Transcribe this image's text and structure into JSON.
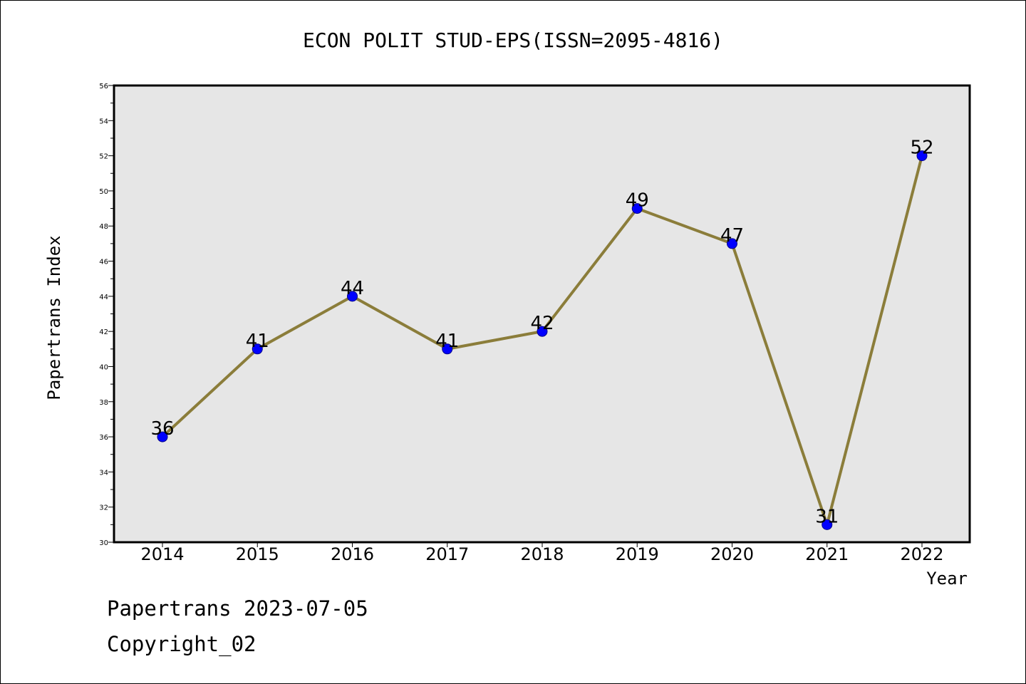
{
  "chart_data": {
    "type": "line",
    "title": "ECON POLIT STUD-EPS(ISSN=2095-4816)",
    "xlabel": "Year",
    "ylabel": "Papertrans Index",
    "categories": [
      "2014",
      "2015",
      "2016",
      "2017",
      "2018",
      "2019",
      "2020",
      "2021",
      "2022"
    ],
    "series": [
      {
        "values": [
          36,
          41,
          44,
          41,
          42,
          49,
          47,
          31,
          52
        ]
      }
    ],
    "data_labels": [
      "36",
      "41",
      "44",
      "41",
      "42",
      "49",
      "47",
      "31",
      "52"
    ],
    "ylim": [
      30,
      56
    ],
    "y_ticks": [
      "30",
      "32",
      "34",
      "36",
      "38",
      "40",
      "42",
      "44",
      "46",
      "48",
      "50",
      "52",
      "54",
      "56"
    ],
    "grid": false,
    "legend": "none",
    "colors": {
      "line": "#8b7d3a",
      "marker": "#0000ff",
      "plot_background": "#e6e6e6",
      "frame": "#000000"
    }
  },
  "footer": {
    "line1": "Papertrans 2023-07-05",
    "line2": "Copyright_02"
  }
}
